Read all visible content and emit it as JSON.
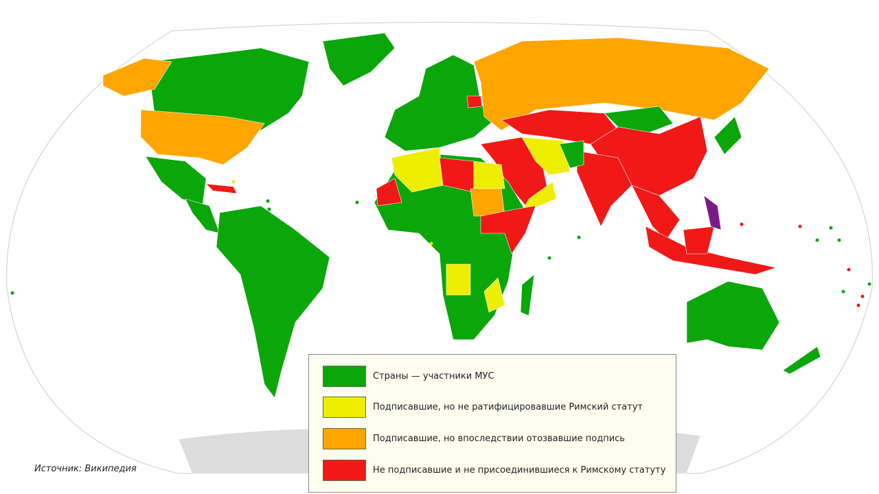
{
  "colors": {
    "party": "#0aa60a",
    "signed_not_ratified": "#eeee00",
    "signed_withdrawn": "#ffa500",
    "not_signed": "#f11818",
    "other": "#7a1a8a",
    "no_data": "#dcdcdc"
  },
  "legend": {
    "items": [
      {
        "key": "party",
        "label": "Страны — участники МУС"
      },
      {
        "key": "signed_not_ratified",
        "label": "Подписавшие, но не ратифицировавшие Римский статут"
      },
      {
        "key": "signed_withdrawn",
        "label": "Подписавшие, но впоследствии отозвавшие подпись"
      },
      {
        "key": "not_signed",
        "label": "Не подписавшие и не присоединившиеся к Римскому статуту"
      }
    ]
  },
  "source": "Источник: Википедия"
}
